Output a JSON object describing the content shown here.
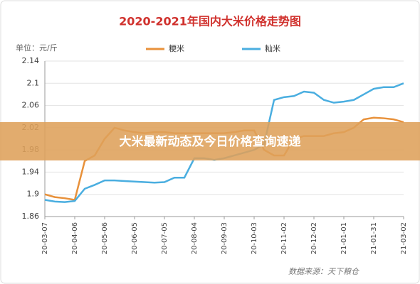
{
  "chart_data": {
    "type": "line",
    "title": "2020-2021年国内大米价格走势图",
    "unit_label": "单位：元/斤",
    "source_note": "数据来源：天下粮仓",
    "banner": "大米最新动态及今日价格查询速递",
    "categories": [
      "20-03-07",
      null,
      null,
      "20-04-06",
      null,
      null,
      "20-05-06",
      null,
      null,
      "20-06-05",
      null,
      null,
      "20-07-05",
      null,
      null,
      "20-08-04",
      null,
      null,
      "20-09-03",
      null,
      null,
      "20-10-03",
      null,
      null,
      "20-11-02",
      null,
      null,
      "20-12-02",
      null,
      null,
      "21-01-01",
      null,
      null,
      "21-01-31",
      null,
      null,
      "21-03-02"
    ],
    "series": [
      {
        "name": "粳米",
        "color": "#e8913a",
        "values": [
          1.9,
          1.895,
          1.893,
          1.89,
          1.96,
          1.97,
          2.0,
          2.02,
          2.015,
          2.012,
          2.01,
          2.012,
          2.012,
          2.01,
          2.01,
          2.01,
          2.01,
          2.01,
          2.01,
          2.012,
          2.015,
          2.015,
          1.98,
          1.97,
          1.97,
          2.0,
          2.005,
          2.005,
          2.005,
          2.01,
          2.012,
          2.02,
          2.035,
          2.038,
          2.037,
          2.035,
          2.03
        ]
      },
      {
        "name": "籼米",
        "color": "#4aaee0",
        "values": [
          1.89,
          1.887,
          1.886,
          1.888,
          1.91,
          1.917,
          1.925,
          1.925,
          1.924,
          1.923,
          1.922,
          1.921,
          1.922,
          1.93,
          1.93,
          1.965,
          1.965,
          1.962,
          1.965,
          1.97,
          1.975,
          1.98,
          1.99,
          2.07,
          2.075,
          2.077,
          2.085,
          2.083,
          2.07,
          2.065,
          2.067,
          2.07,
          2.08,
          2.09,
          2.093,
          2.093,
          2.1
        ]
      }
    ],
    "ylim": [
      1.86,
      2.14
    ],
    "yticks": [
      1.86,
      1.9,
      1.94,
      1.98,
      2.02,
      2.06,
      2.1,
      2.14
    ],
    "grid": true
  }
}
